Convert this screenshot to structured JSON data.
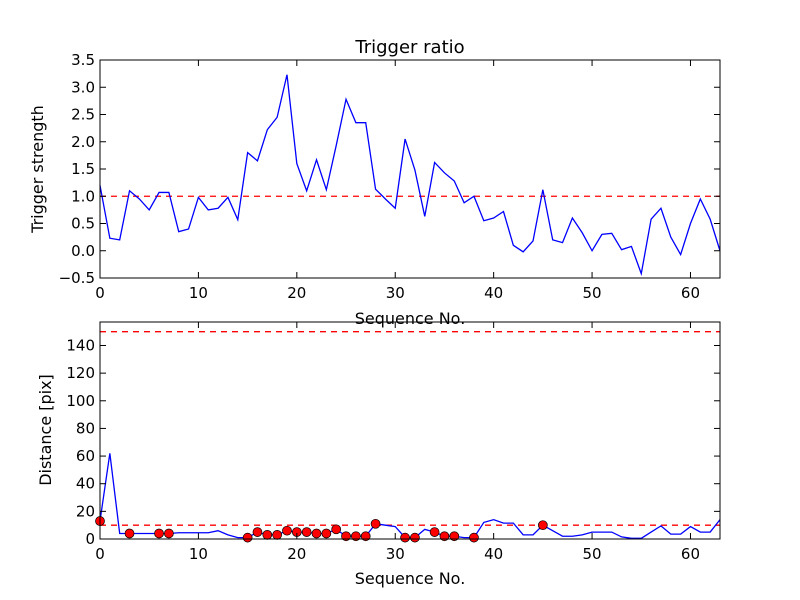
{
  "chart_data": [
    {
      "type": "line",
      "title": "Trigger ratio",
      "xlabel": "Sequence No.",
      "ylabel": "Trigger strength",
      "xlim": [
        0,
        63
      ],
      "ylim": [
        -0.5,
        3.5
      ],
      "xticks": [
        0,
        10,
        20,
        30,
        40,
        50,
        60
      ],
      "yticks": [
        -0.5,
        0.0,
        0.5,
        1.0,
        1.5,
        2.0,
        2.5,
        3.0,
        3.5
      ],
      "ytick_labels": [
        "−0.5",
        "0.0",
        "0.5",
        "1.0",
        "1.5",
        "2.0",
        "2.5",
        "3.0",
        "3.5"
      ],
      "threshold": 1.0,
      "line_color": "#0000ff",
      "threshold_color": "#ff0000",
      "values": [
        1.2,
        0.23,
        0.2,
        1.1,
        0.95,
        0.75,
        1.07,
        1.07,
        0.35,
        0.4,
        0.98,
        0.75,
        0.78,
        0.98,
        0.57,
        1.8,
        1.65,
        2.22,
        2.45,
        3.23,
        1.6,
        1.1,
        1.67,
        1.12,
        1.93,
        2.78,
        2.35,
        2.35,
        1.13,
        0.95,
        0.78,
        2.05,
        1.48,
        0.63,
        1.62,
        1.43,
        1.28,
        0.88,
        1.0,
        0.55,
        0.6,
        0.72,
        0.1,
        -0.02,
        0.18,
        1.12,
        0.2,
        0.15,
        0.6,
        0.33,
        0.0,
        0.3,
        0.32,
        0.02,
        0.08,
        -0.42,
        0.58,
        0.78,
        0.25,
        -0.07,
        0.5,
        0.95,
        0.58,
        0.0
      ]
    },
    {
      "type": "line",
      "title": "",
      "xlabel": "Sequence No.",
      "ylabel": "Distance [pix]",
      "xlim": [
        0,
        63
      ],
      "ylim": [
        0,
        157
      ],
      "xticks": [
        0,
        10,
        20,
        30,
        40,
        50,
        60
      ],
      "yticks": [
        0,
        20,
        40,
        60,
        80,
        100,
        120,
        140
      ],
      "ytick_labels": [
        "0",
        "20",
        "40",
        "60",
        "80",
        "100",
        "120",
        "140"
      ],
      "thresholds": [
        10,
        150
      ],
      "line_color": "#0000ff",
      "marker_color": "#ff0000",
      "values": [
        13,
        62,
        4,
        4,
        4,
        4,
        4,
        4,
        4.5,
        4.5,
        4.5,
        4.5,
        6,
        3,
        1,
        1,
        5,
        3,
        3,
        6,
        5,
        5,
        4,
        4,
        7,
        2,
        2,
        2,
        11,
        10,
        9,
        1,
        1,
        7,
        5,
        2,
        2,
        1,
        1,
        12,
        14,
        11.5,
        11.5,
        3,
        3,
        10,
        6,
        2,
        2,
        3,
        5,
        5,
        5,
        1.5,
        0.5,
        0.5,
        5,
        9.5,
        3.5,
        3.5,
        9,
        5,
        5,
        14
      ],
      "marker_indices": [
        0,
        3,
        6,
        7,
        15,
        16,
        17,
        18,
        19,
        20,
        21,
        22,
        23,
        24,
        25,
        26,
        27,
        28,
        31,
        32,
        34,
        35,
        36,
        38,
        45
      ]
    }
  ]
}
